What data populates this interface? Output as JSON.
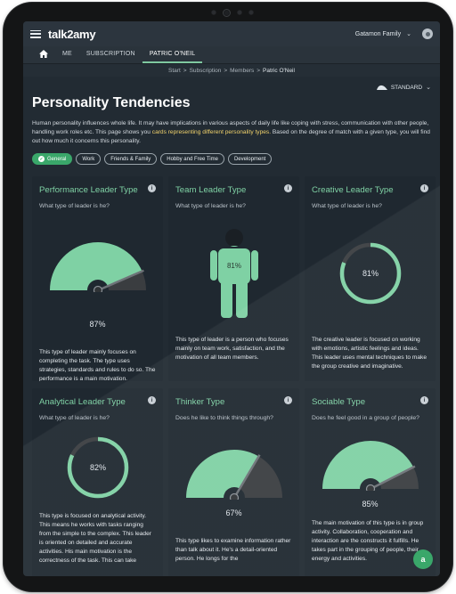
{
  "header": {
    "logo": "talk2amy",
    "account_name": "Gatamon Family"
  },
  "nav": {
    "tabs": [
      {
        "label": "ME"
      },
      {
        "label": "SUBSCRIPTION"
      },
      {
        "label": "PATRIC O'NEIL",
        "active": true
      }
    ]
  },
  "breadcrumb": {
    "items": [
      "Start",
      "Subscription",
      "Members",
      "Patric O'Neil"
    ],
    "separator": ">"
  },
  "page": {
    "title": "Personality Tendencies",
    "plan": "STANDARD",
    "intro_before": "Human personality influences whole life. It may have implications in various aspects of daily life like coping with stress, communication with other people, handling work roles etc. This page shows you ",
    "intro_highlight": "cards representing different personality types.",
    "intro_after": " Based on the degree of match with a given type, you will find out how much it concerns this personality."
  },
  "filters": [
    {
      "label": "General",
      "active": true
    },
    {
      "label": "Work"
    },
    {
      "label": "Friends & Family"
    },
    {
      "label": "Hobby and Free Time"
    },
    {
      "label": "Development"
    }
  ],
  "cards": [
    {
      "title": "Performance Leader Type",
      "question": "What type of leader is he?",
      "visual": "gauge",
      "percent": 87,
      "percent_label": "87%",
      "description": "This type of leader mainly focuses on completing the task. The type uses strategies, standards and rules to do so. The performance is a main motivation."
    },
    {
      "title": "Team Leader Type",
      "question": "What type of leader is he?",
      "visual": "person",
      "percent": 81,
      "percent_label": "81%",
      "description": "This type of leader is a person who focuses mainly on team work, satisfaction, and the motivation of all team members."
    },
    {
      "title": "Creative Leader Type",
      "question": "What type of leader is he?",
      "visual": "ring",
      "percent": 81,
      "percent_label": "81%",
      "description": "The creative leader is focused on working with emotions, artistic feelings and ideas. This leader uses mental techniques to make the group creative and imaginative."
    },
    {
      "title": "Analytical Leader Type",
      "question": "What type of leader is he?",
      "visual": "ring",
      "percent": 82,
      "percent_label": "82%",
      "description": "This type is focused on analytical activity. This means he works with tasks ranging from the simple to the complex. This leader is oriented on detailed and accurate activities. His main motivation is the correctness of the task. This can take"
    },
    {
      "title": "Thinker Type",
      "question": "Does he like to think things through?",
      "visual": "gauge",
      "percent": 67,
      "percent_label": "67%",
      "description": "This type likes to examine information rather than talk about it. He's a detail-oriented person. He longs for the"
    },
    {
      "title": "Sociable Type",
      "question": "Does he feel good in a group of people?",
      "visual": "gauge",
      "percent": 85,
      "percent_label": "85%",
      "description": "The main motivation of this type is in group activity. Collaboration, cooperation and interaction are the constructs it fulfills. He takes part in the grouping of people, their energy and activities."
    }
  ],
  "colors": {
    "accent_green": "#7fd1a4",
    "chip_active": "#3aa76a",
    "highlight": "#f2d36c",
    "card_bg": "#1f2830",
    "screen_bg": "#222b33"
  },
  "fab": {
    "icon": "chat-bot-icon",
    "label": "a"
  }
}
